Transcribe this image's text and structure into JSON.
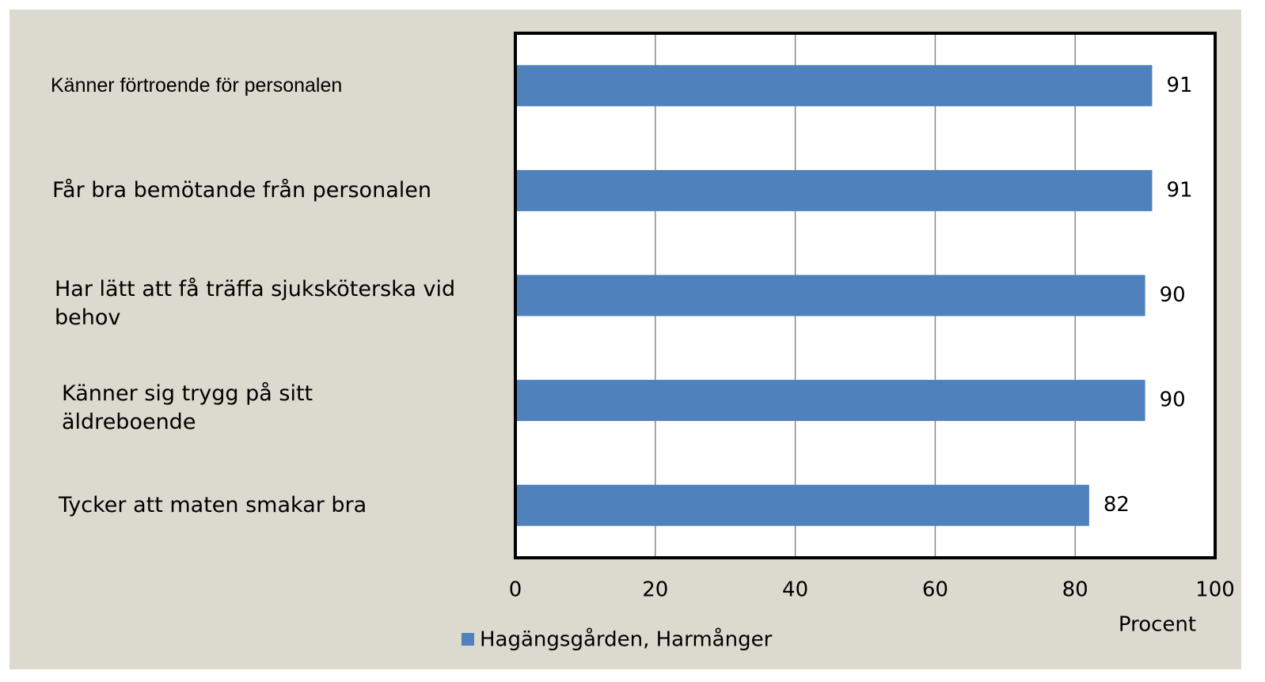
{
  "chart_data": {
    "type": "hbar",
    "categories": [
      "Känner förtroende för personalen",
      "Får bra bemötande från personalen",
      "Har lätt att få träffa sjuksköterska vid behov",
      "Känner sig trygg på sitt äldreboende",
      "Tycker att maten smakar bra"
    ],
    "series": [
      {
        "name": "Hagängsgården, Harmånger",
        "color": "#4f81bd",
        "values": [
          91,
          91,
          90,
          90,
          82
        ]
      }
    ],
    "xlim": [
      0,
      100
    ],
    "xticks": [
      0,
      20,
      40,
      60,
      80,
      100
    ],
    "xlabel": "Procent",
    "grid": true,
    "legend": "bottom"
  }
}
